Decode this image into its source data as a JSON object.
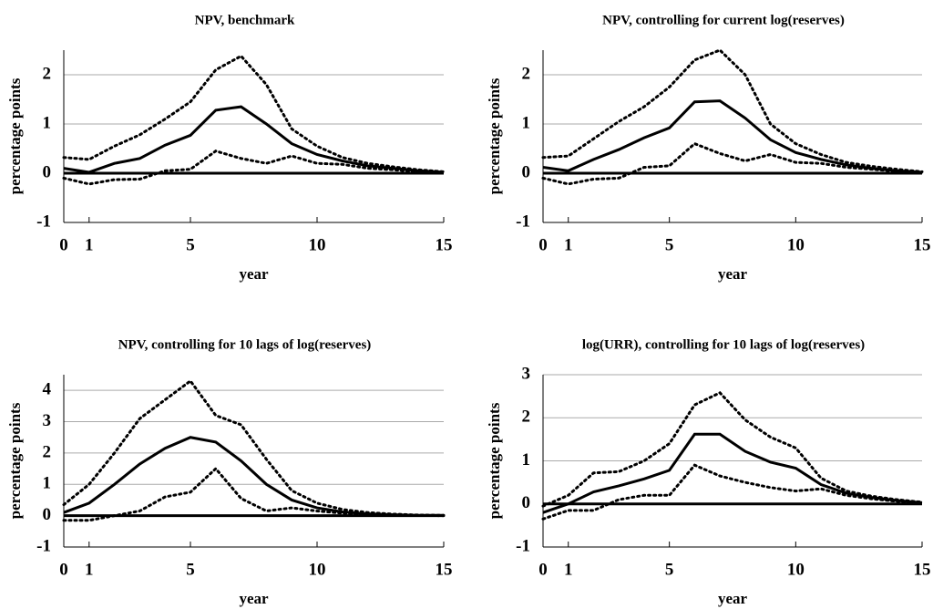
{
  "chart_data": [
    {
      "type": "line",
      "title": "NPV, benchmark",
      "x_label": "year",
      "y_label": "percentage points",
      "x": [
        0,
        1,
        2,
        3,
        4,
        5,
        6,
        7,
        8,
        9,
        10,
        11,
        12,
        13,
        14,
        15
      ],
      "xlim": [
        0,
        15
      ],
      "xticks": [
        0,
        1,
        5,
        10,
        15
      ],
      "ylim": [
        -1,
        2.5
      ],
      "yticks": [
        -1,
        0,
        1,
        2
      ],
      "grid": true,
      "series": [
        {
          "color": "#000000",
          "style": "solid",
          "values": [
            0.1,
            0.02,
            0.2,
            0.3,
            0.57,
            0.77,
            1.28,
            1.35,
            1.0,
            0.6,
            0.38,
            0.25,
            0.15,
            0.1,
            0.05,
            0.02
          ]
        },
        {
          "color": "#000000",
          "style": "dotted",
          "values": [
            0.32,
            0.28,
            0.55,
            0.78,
            1.1,
            1.45,
            2.1,
            2.38,
            1.8,
            0.9,
            0.55,
            0.32,
            0.2,
            0.13,
            0.07,
            0.03
          ]
        },
        {
          "color": "#000000",
          "style": "dotted",
          "values": [
            -0.1,
            -0.22,
            -0.13,
            -0.12,
            0.05,
            0.08,
            0.45,
            0.3,
            0.2,
            0.35,
            0.2,
            0.18,
            0.1,
            0.07,
            0.03,
            0.01
          ]
        }
      ]
    },
    {
      "type": "line",
      "title": "NPV, controlling for current log(reserves)",
      "x_label": "year",
      "y_label": "percentage points",
      "x": [
        0,
        1,
        2,
        3,
        4,
        5,
        6,
        7,
        8,
        9,
        10,
        11,
        12,
        13,
        14,
        15
      ],
      "xlim": [
        0,
        15
      ],
      "xticks": [
        0,
        1,
        5,
        10,
        15
      ],
      "ylim": [
        -1,
        2.5
      ],
      "yticks": [
        -1,
        0,
        1,
        2
      ],
      "grid": true,
      "series": [
        {
          "color": "#000000",
          "style": "solid",
          "values": [
            0.12,
            0.05,
            0.28,
            0.48,
            0.72,
            0.92,
            1.45,
            1.47,
            1.12,
            0.68,
            0.42,
            0.28,
            0.17,
            0.1,
            0.05,
            0.02
          ]
        },
        {
          "color": "#000000",
          "style": "dotted",
          "values": [
            0.32,
            0.35,
            0.7,
            1.05,
            1.35,
            1.75,
            2.3,
            2.5,
            2.0,
            1.0,
            0.6,
            0.38,
            0.22,
            0.14,
            0.08,
            0.03
          ]
        },
        {
          "color": "#000000",
          "style": "dotted",
          "values": [
            -0.1,
            -0.22,
            -0.12,
            -0.1,
            0.12,
            0.15,
            0.6,
            0.4,
            0.25,
            0.38,
            0.22,
            0.2,
            0.12,
            0.08,
            0.04,
            0.01
          ]
        }
      ]
    },
    {
      "type": "line",
      "title": "NPV, controlling for 10 lags of log(reserves)",
      "x_label": "year",
      "y_label": "percentage points",
      "x": [
        0,
        1,
        2,
        3,
        4,
        5,
        6,
        7,
        8,
        9,
        10,
        11,
        12,
        13,
        14,
        15
      ],
      "xlim": [
        0,
        15
      ],
      "xticks": [
        0,
        1,
        5,
        10,
        15
      ],
      "ylim": [
        -1,
        4.5
      ],
      "yticks": [
        -1,
        0,
        1,
        2,
        3,
        4
      ],
      "grid": true,
      "series": [
        {
          "color": "#000000",
          "style": "solid",
          "values": [
            0.1,
            0.4,
            1.0,
            1.65,
            2.15,
            2.5,
            2.35,
            1.75,
            1.0,
            0.5,
            0.25,
            0.12,
            0.06,
            0.03,
            0.01,
            0.01
          ]
        },
        {
          "color": "#000000",
          "style": "dotted",
          "values": [
            0.35,
            1.0,
            2.0,
            3.1,
            3.7,
            4.3,
            3.2,
            2.9,
            1.8,
            0.8,
            0.4,
            0.2,
            0.1,
            0.05,
            0.02,
            0.01
          ]
        },
        {
          "color": "#000000",
          "style": "dotted",
          "values": [
            -0.15,
            -0.15,
            0.0,
            0.15,
            0.6,
            0.75,
            1.5,
            0.55,
            0.15,
            0.25,
            0.15,
            0.08,
            0.04,
            0.02,
            0.01,
            0.0
          ]
        }
      ]
    },
    {
      "type": "line",
      "title": "log(URR), controlling for 10 lags of log(reserves)",
      "x_label": "year",
      "y_label": "percentage points",
      "x": [
        0,
        1,
        2,
        3,
        4,
        5,
        6,
        7,
        8,
        9,
        10,
        11,
        12,
        13,
        14,
        15
      ],
      "xlim": [
        0,
        15
      ],
      "xticks": [
        0,
        1,
        5,
        10,
        15
      ],
      "ylim": [
        -1,
        3
      ],
      "yticks": [
        -1,
        0,
        1,
        2,
        3
      ],
      "grid": true,
      "series": [
        {
          "color": "#000000",
          "style": "solid",
          "values": [
            -0.2,
            0.0,
            0.28,
            0.42,
            0.58,
            0.78,
            1.62,
            1.62,
            1.22,
            0.97,
            0.83,
            0.45,
            0.25,
            0.15,
            0.08,
            0.03
          ]
        },
        {
          "color": "#000000",
          "style": "dotted",
          "values": [
            -0.05,
            0.2,
            0.72,
            0.75,
            1.0,
            1.4,
            2.3,
            2.58,
            1.95,
            1.55,
            1.3,
            0.6,
            0.3,
            0.18,
            0.1,
            0.04
          ]
        },
        {
          "color": "#000000",
          "style": "dotted",
          "values": [
            -0.35,
            -0.15,
            -0.15,
            0.1,
            0.2,
            0.2,
            0.9,
            0.65,
            0.5,
            0.38,
            0.3,
            0.35,
            0.2,
            0.12,
            0.06,
            0.02
          ]
        }
      ]
    }
  ]
}
